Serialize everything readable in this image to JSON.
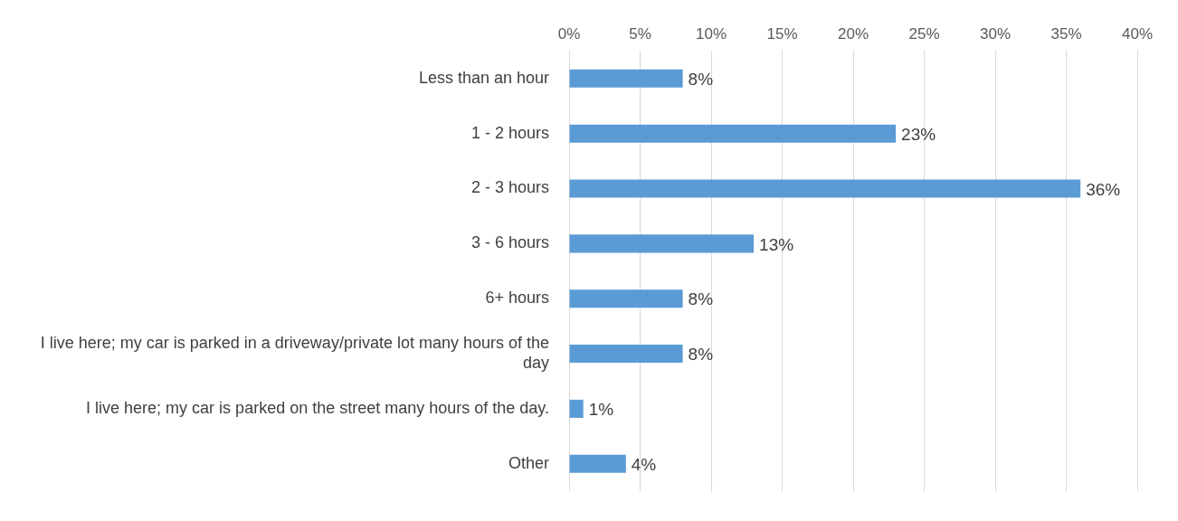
{
  "chart_data": {
    "type": "bar",
    "orientation": "horizontal",
    "categories": [
      "Less than an hour",
      "1 - 2 hours",
      "2 - 3 hours",
      "3 - 6 hours",
      "6+ hours",
      "I live here; my car is parked in a driveway/private lot many hours of the day",
      "I live here; my car is parked on the street many hours of the day.",
      "Other"
    ],
    "values": [
      8,
      23,
      36,
      13,
      8,
      8,
      1,
      4
    ],
    "color": "#5b9bd5",
    "xlim": [
      0,
      40
    ],
    "xticks": [
      {
        "value": 0,
        "label": "0%"
      },
      {
        "value": 5,
        "label": "5%"
      },
      {
        "value": 10,
        "label": "10%"
      },
      {
        "value": 15,
        "label": "15%"
      },
      {
        "value": 20,
        "label": "20%"
      },
      {
        "value": 25,
        "label": "25%"
      },
      {
        "value": 30,
        "label": "30%"
      },
      {
        "value": 35,
        "label": "35%"
      },
      {
        "value": 40,
        "label": "40%"
      }
    ],
    "value_labels": [
      "8%",
      "23%",
      "36%",
      "13%",
      "8%",
      "8%",
      "1%",
      "4%"
    ],
    "grid": "x",
    "legend": false
  }
}
